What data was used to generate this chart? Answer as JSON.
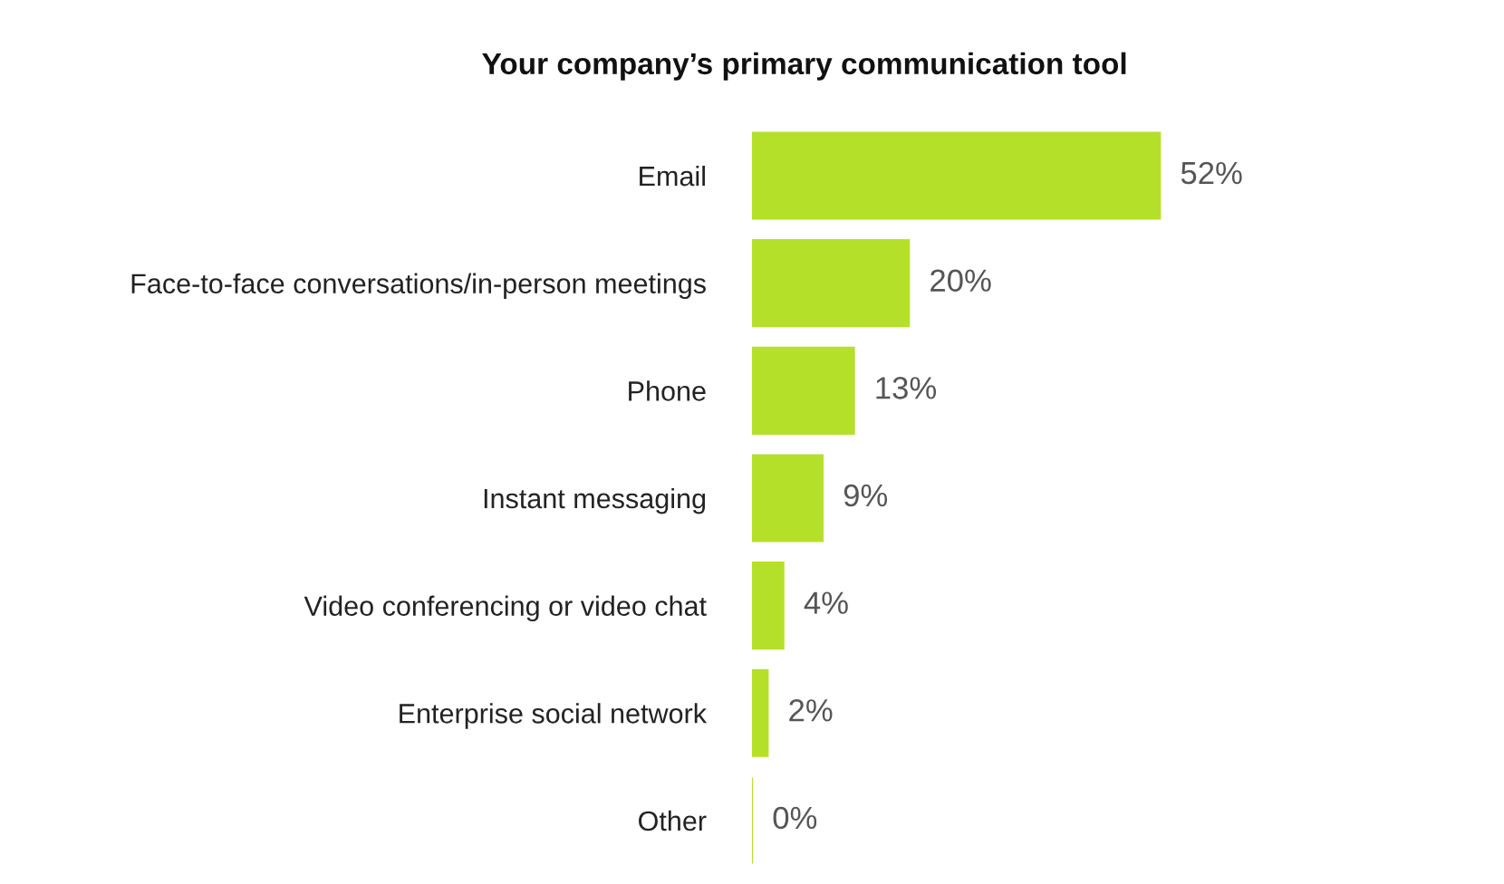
{
  "chart_data": {
    "type": "bar",
    "orientation": "horizontal",
    "title": "Your company’s primary communication tool",
    "categories": [
      "Email",
      "Face-to-face conversations/in-person meetings",
      "Phone",
      "Instant messaging",
      "Video conferencing or video chat",
      "Enterprise social network",
      "Other"
    ],
    "values": [
      52,
      20,
      13,
      9,
      4,
      2,
      0
    ],
    "value_labels": [
      "52%",
      "20%",
      "13%",
      "9%",
      "4%",
      "2%",
      "0%"
    ],
    "color": "#b5e02a",
    "grid": false,
    "legend": false
  }
}
